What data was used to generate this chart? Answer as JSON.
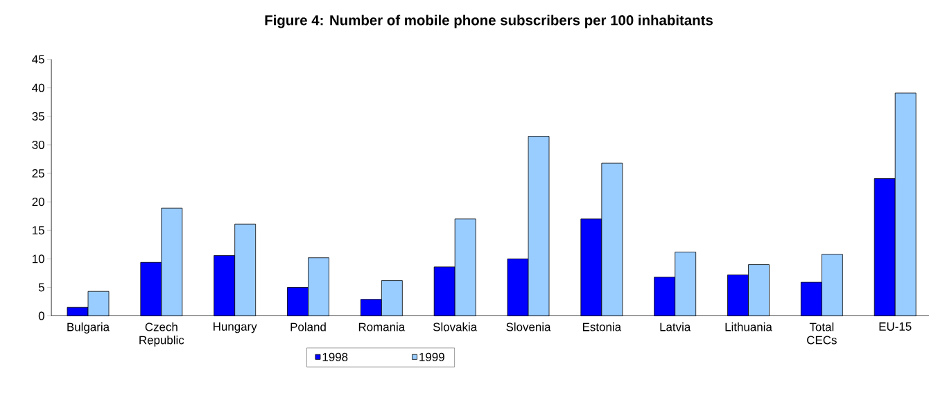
{
  "chart_data": {
    "type": "bar",
    "title": "Figure 4: Number of mobile phone subscribers per 100 inhabitants",
    "categories": [
      "Bulgaria",
      "Czech Republic",
      "Hungary",
      "Poland",
      "Romania",
      "Slovakia",
      "Slovenia",
      "Estonia",
      "Latvia",
      "Lithuania",
      "Total CECs",
      "EU-15"
    ],
    "series": [
      {
        "name": "1998",
        "color": "#0000ff",
        "values": [
          1.5,
          9.4,
          10.6,
          5.0,
          2.9,
          8.6,
          10.0,
          17.0,
          6.8,
          7.2,
          5.9,
          24.1
        ]
      },
      {
        "name": "1999",
        "color": "#99ccff",
        "values": [
          4.3,
          18.9,
          16.1,
          10.2,
          6.2,
          17.0,
          31.5,
          26.8,
          11.2,
          9.0,
          10.8,
          39.1
        ]
      }
    ],
    "ylim": [
      0,
      45
    ],
    "yticks": [
      0,
      5,
      10,
      15,
      20,
      25,
      30,
      35,
      40,
      45
    ],
    "grid": false,
    "legend": "bottom"
  }
}
